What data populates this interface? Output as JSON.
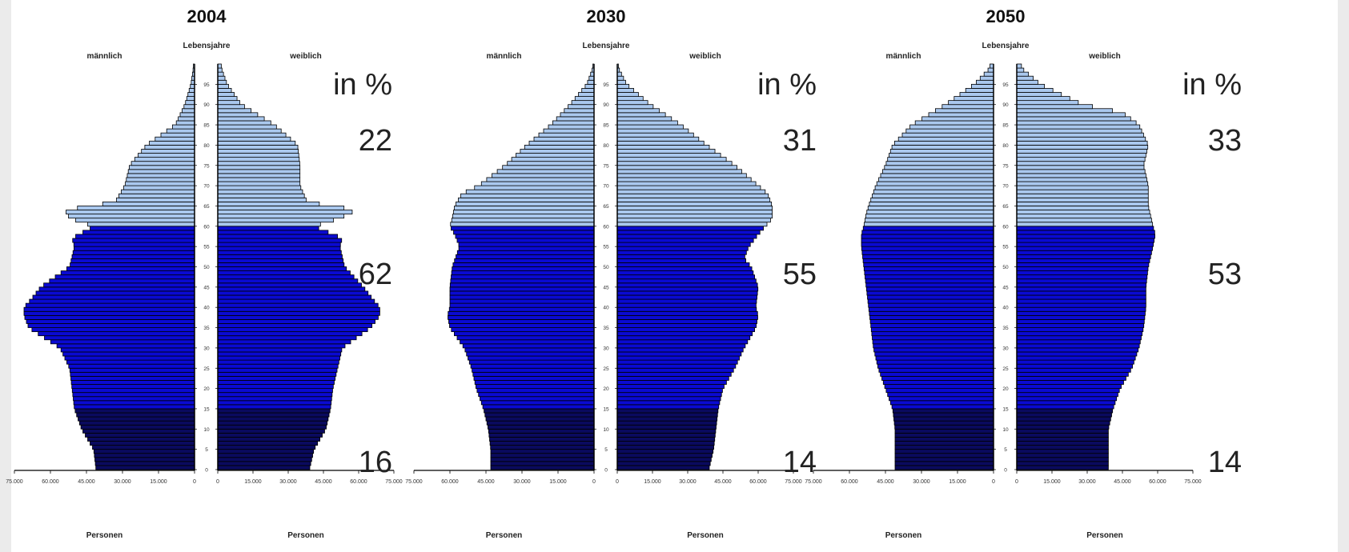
{
  "chart_data": [
    {
      "type": "bar",
      "subtype": "population-pyramid",
      "title": "2004",
      "left_label": "männlich",
      "right_label": "weiblich",
      "center_label": "Lebensjahre",
      "xlabel_left": "Personen",
      "xlabel_right": "Personen",
      "x_ticks_left": [
        "75.000",
        "60.000",
        "45.000",
        "30.000",
        "15.000",
        "0"
      ],
      "x_ticks_right": [
        "0",
        "15.000",
        "30.000",
        "45.000",
        "60.000",
        "75.000"
      ],
      "xlim": [
        0,
        75000
      ],
      "age_ticks": [
        "0",
        "5",
        "10",
        "15",
        "20",
        "25",
        "30",
        "35",
        "40",
        "45",
        "50",
        "55",
        "60",
        "65",
        "70",
        "75",
        "80",
        "85",
        "90",
        "95"
      ],
      "age_range": [
        0,
        100
      ],
      "group_shares": {
        "unit": "in %",
        "age_60_plus": "22",
        "age_15_59": "62",
        "age_0_14": "16"
      },
      "colors": {
        "age_0_14": "#0a0a5e",
        "age_15_59": "#0a0ad2",
        "age_60_plus": "#aac8ee",
        "outline": "#000000"
      },
      "series": [
        {
          "name": "männlich",
          "ages": [
            0,
            5,
            10,
            15,
            20,
            25,
            30,
            35,
            38,
            40,
            42,
            45,
            50,
            55,
            57,
            60,
            62,
            64,
            66,
            70,
            75,
            80,
            85,
            90,
            95,
            99
          ],
          "values": [
            41000,
            42000,
            47000,
            50000,
            51000,
            52000,
            56000,
            69000,
            71000,
            71000,
            68000,
            64000,
            52000,
            50000,
            51000,
            42000,
            52000,
            54000,
            33000,
            29000,
            27000,
            20000,
            8000,
            4000,
            1500,
            500
          ]
        },
        {
          "name": "weiblich",
          "ages": [
            0,
            5,
            10,
            15,
            20,
            25,
            30,
            35,
            38,
            40,
            42,
            45,
            50,
            55,
            57,
            60,
            62,
            64,
            66,
            70,
            75,
            80,
            85,
            90,
            95,
            99
          ],
          "values": [
            39000,
            41000,
            46000,
            48000,
            49000,
            51000,
            53000,
            65000,
            69000,
            69000,
            66000,
            62000,
            54000,
            52000,
            53000,
            41000,
            52000,
            59000,
            38000,
            35000,
            35000,
            34000,
            24000,
            10000,
            4000,
            1500
          ]
        }
      ]
    },
    {
      "type": "bar",
      "subtype": "population-pyramid",
      "title": "2030",
      "left_label": "männlich",
      "right_label": "weiblich",
      "center_label": "Lebensjahre",
      "xlabel_left": "Personen",
      "xlabel_right": "Personen",
      "x_ticks_left": [
        "75.000",
        "60.000",
        "45.000",
        "30.000",
        "15.000",
        "0"
      ],
      "x_ticks_right": [
        "0",
        "15.000",
        "30.000",
        "45.000",
        "60.000",
        "75.000"
      ],
      "xlim": [
        0,
        75000
      ],
      "age_ticks": [
        "0",
        "5",
        "10",
        "15",
        "20",
        "25",
        "30",
        "35",
        "40",
        "45",
        "50",
        "55",
        "60",
        "65",
        "70",
        "75",
        "80",
        "85",
        "90",
        "95"
      ],
      "age_range": [
        0,
        100
      ],
      "group_shares": {
        "unit": "in %",
        "age_60_plus": "31",
        "age_15_59": "55",
        "age_0_14": "14"
      },
      "colors": {
        "age_0_14": "#0a0a5e",
        "age_15_59": "#0a0ad2",
        "age_60_plus": "#aac8ee",
        "outline": "#000000"
      },
      "series": [
        {
          "name": "männlich",
          "ages": [
            0,
            5,
            10,
            15,
            20,
            25,
            30,
            35,
            38,
            40,
            45,
            50,
            55,
            58,
            60,
            62,
            65,
            68,
            70,
            75,
            80,
            85,
            90,
            95,
            99
          ],
          "values": [
            43000,
            43000,
            44000,
            46000,
            49000,
            51000,
            54000,
            60000,
            61000,
            60000,
            60000,
            59000,
            56000,
            58000,
            60000,
            59000,
            58000,
            55000,
            48000,
            37000,
            28000,
            18000,
            10000,
            3000,
            500
          ]
        },
        {
          "name": "weiblich",
          "ages": [
            0,
            5,
            10,
            15,
            20,
            25,
            30,
            35,
            38,
            40,
            45,
            50,
            52,
            55,
            58,
            60,
            62,
            65,
            68,
            70,
            75,
            80,
            85,
            90,
            95,
            99
          ],
          "values": [
            39000,
            41000,
            42000,
            43000,
            45000,
            50000,
            54000,
            59000,
            60000,
            59000,
            60000,
            57000,
            54000,
            56000,
            60000,
            63000,
            66000,
            66000,
            64000,
            60000,
            50000,
            38000,
            27000,
            14000,
            4000,
            500
          ]
        }
      ]
    },
    {
      "type": "bar",
      "subtype": "population-pyramid",
      "title": "2050",
      "left_label": "männlich",
      "right_label": "weiblich",
      "center_label": "Lebensjahre",
      "xlabel_left": "Personen",
      "xlabel_right": "Personen",
      "x_ticks_left": [
        "75.000",
        "60.000",
        "45.000",
        "30.000",
        "15.000",
        "0"
      ],
      "x_ticks_right": [
        "0",
        "15.000",
        "30.000",
        "45.000",
        "60.000",
        "75.000"
      ],
      "xlim": [
        0,
        75000
      ],
      "age_ticks": [
        "0",
        "5",
        "10",
        "15",
        "20",
        "25",
        "30",
        "35",
        "40",
        "45",
        "50",
        "55",
        "60",
        "65",
        "70",
        "75",
        "80",
        "85",
        "90",
        "95"
      ],
      "age_range": [
        0,
        100
      ],
      "group_shares": {
        "unit": "in %",
        "age_60_plus": "33",
        "age_15_59": "53",
        "age_0_14": "14"
      },
      "colors": {
        "age_0_14": "#0a0a5e",
        "age_15_59": "#0a0ad2",
        "age_60_plus": "#aac8ee",
        "outline": "#000000"
      },
      "series": [
        {
          "name": "männlich",
          "ages": [
            0,
            5,
            10,
            15,
            20,
            25,
            30,
            35,
            40,
            45,
            50,
            55,
            58,
            60,
            63,
            65,
            70,
            75,
            80,
            85,
            90,
            95,
            99
          ],
          "values": [
            41000,
            41000,
            41000,
            42000,
            45000,
            48000,
            50000,
            51000,
            52000,
            53000,
            54000,
            55000,
            55000,
            54000,
            53000,
            52000,
            49000,
            45000,
            42000,
            34000,
            20000,
            8000,
            1500
          ]
        },
        {
          "name": "weiblich",
          "ages": [
            0,
            5,
            10,
            15,
            20,
            25,
            30,
            35,
            40,
            45,
            50,
            55,
            58,
            60,
            65,
            70,
            75,
            80,
            85,
            88,
            90,
            95,
            99
          ],
          "values": [
            39000,
            39000,
            39000,
            41000,
            44000,
            49000,
            52000,
            54000,
            55000,
            55000,
            56000,
            58000,
            59000,
            58000,
            56000,
            56000,
            54000,
            56000,
            52000,
            45000,
            28000,
            10000,
            2000
          ]
        }
      ]
    }
  ]
}
